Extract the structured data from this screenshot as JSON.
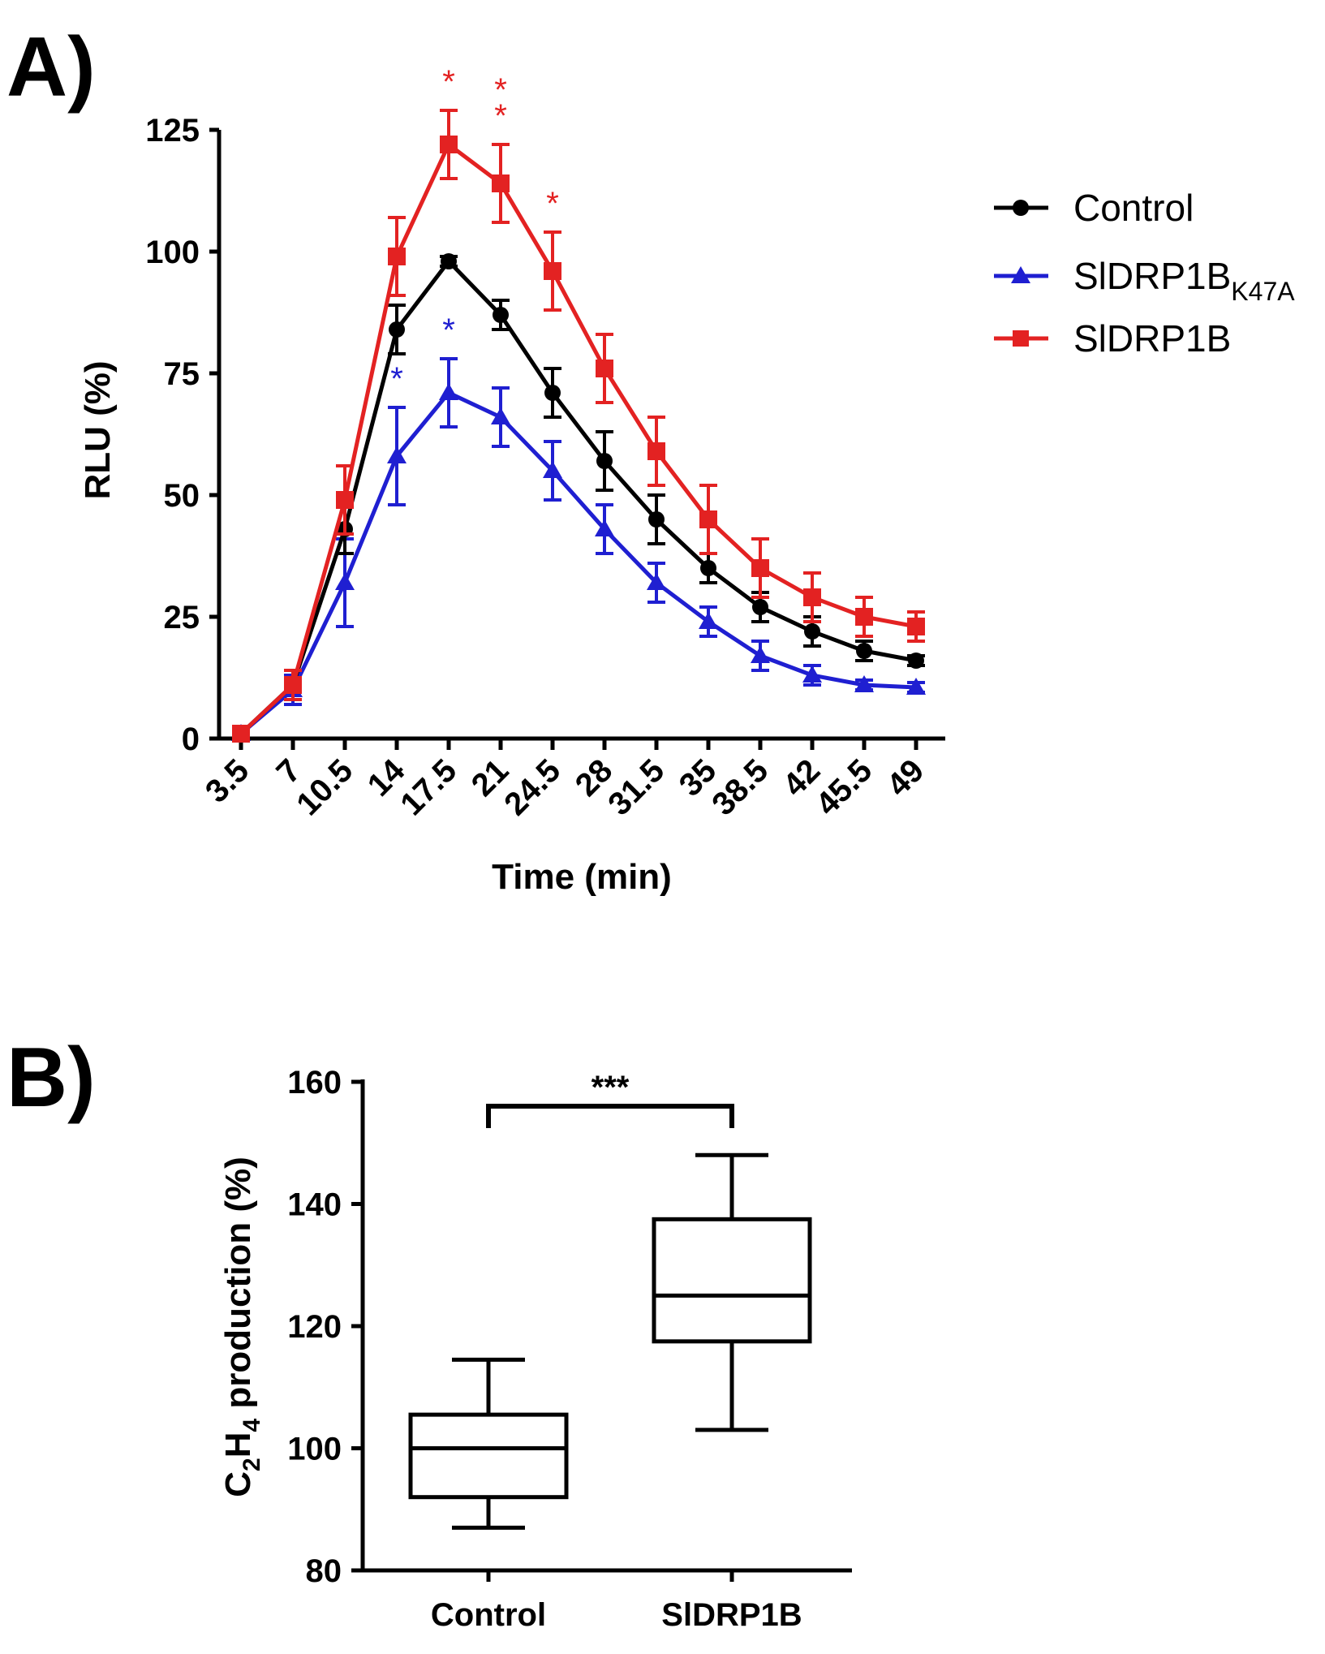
{
  "chart_data": [
    {
      "type": "line",
      "panel_label": "A)",
      "xlabel": "Time (min)",
      "ylabel": "RLU (%)",
      "ylim": [
        0,
        125
      ],
      "yticks": [
        "0",
        "25",
        "50",
        "75",
        "100",
        "125"
      ],
      "x": [
        "3.5",
        "7",
        "10.5",
        "14",
        "17.5",
        "21",
        "24.5",
        "28",
        "31.5",
        "35",
        "38.5",
        "42",
        "45.5",
        "49"
      ],
      "error_bars": true,
      "legend": {
        "position": "right"
      },
      "series": [
        {
          "name": "Control",
          "color": "#000000",
          "marker": "circle",
          "values": [
            1,
            11,
            43,
            84,
            98,
            87,
            71,
            57,
            45,
            35,
            27,
            22,
            18,
            16
          ],
          "errors": [
            1,
            3,
            5,
            5,
            1,
            3,
            5,
            6,
            5,
            3,
            3,
            3,
            2,
            1
          ]
        },
        {
          "name": "SlDRP1B",
          "name_subscript": "K47A",
          "color": "#1f1fd1",
          "marker": "triangle",
          "values": [
            1,
            10,
            32,
            58,
            71,
            66,
            55,
            43,
            32,
            24,
            17,
            13,
            11,
            10.5
          ],
          "errors": [
            1,
            3,
            9,
            10,
            7,
            6,
            6,
            5,
            4,
            3,
            3,
            2,
            1,
            1
          ],
          "significance": [
            {
              "x": "14",
              "label": "*"
            },
            {
              "x": "17.5",
              "label": "*"
            }
          ]
        },
        {
          "name": "SlDRP1B",
          "color": "#e32222",
          "marker": "square",
          "values": [
            1,
            11,
            49,
            99,
            122,
            114,
            96,
            76,
            59,
            45,
            35,
            29,
            25,
            23
          ],
          "errors": [
            1,
            3,
            7,
            8,
            7,
            8,
            8,
            7,
            7,
            7,
            6,
            5,
            4,
            3
          ],
          "significance": [
            {
              "x": "17.5",
              "label": "*"
            },
            {
              "x": "21",
              "label": "*\n*"
            },
            {
              "x": "24.5",
              "label": "*"
            }
          ]
        }
      ]
    },
    {
      "type": "box",
      "panel_label": "B)",
      "xlabel": "",
      "ylabel": {
        "prefix": "C",
        "sub1": "2",
        "mid": "H",
        "sub2": "4",
        "suffix": " production (%)"
      },
      "ylim": [
        80,
        160
      ],
      "yticks": [
        "80",
        "100",
        "120",
        "140",
        "160"
      ],
      "categories": [
        "Control",
        "SlDRP1B"
      ],
      "boxes": [
        {
          "name": "Control",
          "min": 87,
          "q1": 92,
          "median": 100,
          "q3": 105.5,
          "max": 114.5
        },
        {
          "name": "SlDRP1B",
          "min": 103,
          "q1": 117.5,
          "median": 125,
          "q3": 137.5,
          "max": 148
        }
      ],
      "significance": {
        "between": [
          "Control",
          "SlDRP1B"
        ],
        "label": "***"
      }
    }
  ]
}
